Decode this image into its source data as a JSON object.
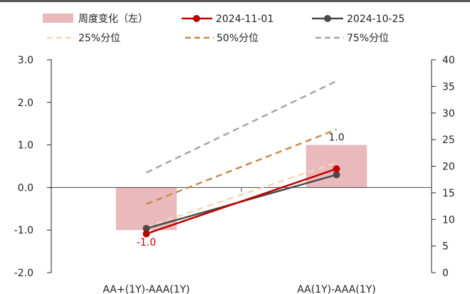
{
  "colors": {
    "top_border": "#595959",
    "bar": "#e9b9bc",
    "s20241101": "#c00000",
    "s20241025": "#4a4a4a",
    "p25": "#f2d8b8",
    "p50": "#c98a4e",
    "p75": "#a6a6a6",
    "axis": "#222222",
    "zero_line": "#444444"
  },
  "legend": {
    "bar": "周度变化（左）",
    "s1": "2024-11-01",
    "s2": "2024-10-25",
    "p25": "25%分位",
    "p50": "50%分位",
    "p75": "75%分位"
  },
  "chart_data": {
    "type": "bar+line",
    "categories": [
      "AA+(1Y)-AAA(1Y)",
      "AA(1Y)-AAA(1Y)"
    ],
    "left_axis": {
      "min": -2.0,
      "max": 3.0,
      "ticks": [
        "3.0",
        "2.0",
        "1.0",
        "0.0",
        "-1.0",
        "-2.0"
      ],
      "tick_values": [
        3,
        2,
        1,
        0,
        -1,
        -2
      ]
    },
    "right_axis": {
      "min": 0,
      "max": 40,
      "ticks": [
        "40",
        "35",
        "30",
        "25",
        "20",
        "15",
        "10",
        "5",
        "0"
      ],
      "tick_values": [
        40,
        35,
        30,
        25,
        20,
        15,
        10,
        5,
        0
      ]
    },
    "bars": {
      "name": "周度变化（左）",
      "axis": "left",
      "values": [
        -1.0,
        1.0
      ],
      "labels": [
        "-1.0",
        "1.0"
      ]
    },
    "lines": [
      {
        "key": "p75",
        "name": "75%分位",
        "axis": "right",
        "dash": true,
        "values": [
          18.8,
          36.0
        ]
      },
      {
        "key": "p50",
        "name": "50%分位",
        "axis": "right",
        "dash": true,
        "values": [
          12.9,
          26.9
        ]
      },
      {
        "key": "p25",
        "name": "25%分位",
        "axis": "right",
        "dash": true,
        "values": [
          8.6,
          20.7
        ]
      },
      {
        "key": "s20241025",
        "name": "2024-10-25",
        "axis": "right",
        "dash": false,
        "marker": true,
        "values": [
          8.3,
          18.4
        ]
      },
      {
        "key": "s20241101",
        "name": "2024-11-01",
        "axis": "right",
        "dash": false,
        "marker": true,
        "values": [
          7.3,
          19.5
        ]
      }
    ],
    "grid": false,
    "legend_position": "top"
  }
}
